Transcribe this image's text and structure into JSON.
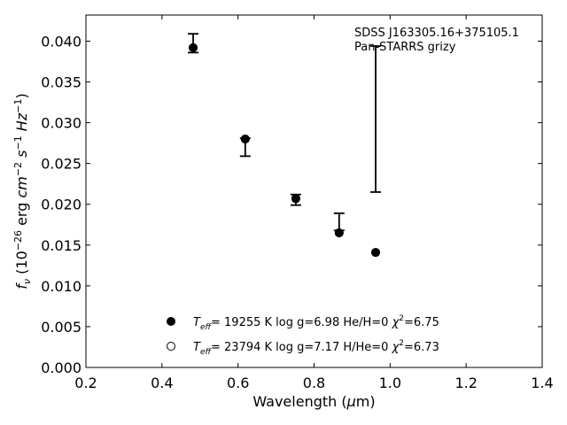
{
  "chart_data": {
    "type": "scatter",
    "title": "",
    "xlabel": "Wavelength (μm)",
    "ylabel": "f_ν (10^-26 erg cm^-2 s^-1 Hz^-1)",
    "xlim": [
      0.2,
      1.4
    ],
    "ylim": [
      0.0,
      0.0432
    ],
    "x_ticks": [
      "0.2",
      "0.4",
      "0.6",
      "0.8",
      "1.0",
      "1.2",
      "1.4"
    ],
    "y_ticks": [
      "0.000",
      "0.005",
      "0.010",
      "0.015",
      "0.020",
      "0.025",
      "0.030",
      "0.035",
      "0.040"
    ],
    "annotation": [
      "SDSS J163305.16+375105.1",
      "Pan-STARRS grizy"
    ],
    "grid": false,
    "legend_position": "bottom-center",
    "observed": {
      "x": [
        0.482,
        0.619,
        0.752,
        0.866,
        0.962
      ],
      "y": [
        0.0397,
        0.0279,
        0.0206,
        0.0172,
        0.0305
      ],
      "yerr_low": [
        0.0011,
        0.002,
        0.0007,
        0.0004,
        0.009
      ],
      "yerr_high": [
        0.0012,
        0.0002,
        0.0006,
        0.0017,
        0.0089
      ]
    },
    "series": [
      {
        "legend_label": "T_eff= 19255 K  log g=6.98  He/H=0  χ²=6.75",
        "marker": "filled-circle",
        "x": [
          0.482,
          0.619,
          0.752,
          0.866,
          0.962
        ],
        "y": [
          0.0392,
          0.028,
          0.0207,
          0.0165,
          0.0141
        ]
      },
      {
        "legend_label": "T_eff= 23794 K  log g=7.17  H/He=0  χ²=6.73",
        "marker": "open-circle",
        "x": [
          0.482,
          0.619,
          0.752,
          0.866,
          0.962
        ],
        "y": [
          0.0392,
          0.028,
          0.0207,
          0.0165,
          0.0141
        ]
      }
    ]
  }
}
